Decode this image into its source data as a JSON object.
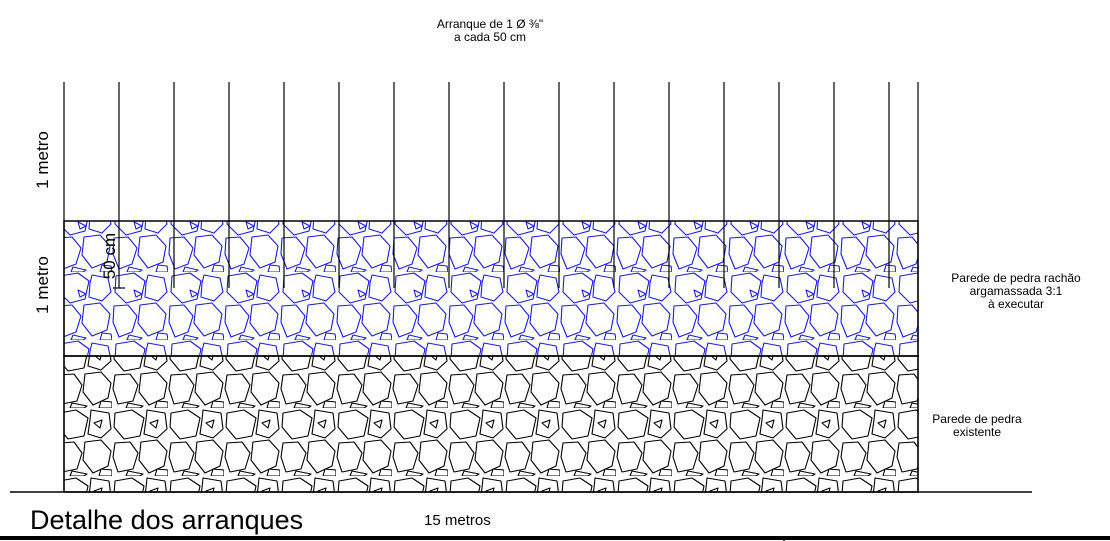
{
  "top_note": {
    "line1": "Arranque de 1 Ø ⅜\"",
    "line2": "a cada 50 cm"
  },
  "title": "Detalhe dos arranques",
  "width_label": "15 metros",
  "height_label_upper": "1 metro",
  "height_label_lower": "1 metro",
  "spacing_label": "50 cm",
  "new_wall_label": {
    "line1": "Parede de pedra rachão",
    "line2": "argamassada 3:1",
    "line3": "à executar"
  },
  "existing_wall_label": {
    "line1": "Parede de pedra",
    "line2": "existente"
  },
  "colors": {
    "new_wall": "#1a1adf",
    "existing_wall": "#000000",
    "lines": "#000000"
  },
  "rebar": {
    "count": 16,
    "spacing_cm": 50
  }
}
